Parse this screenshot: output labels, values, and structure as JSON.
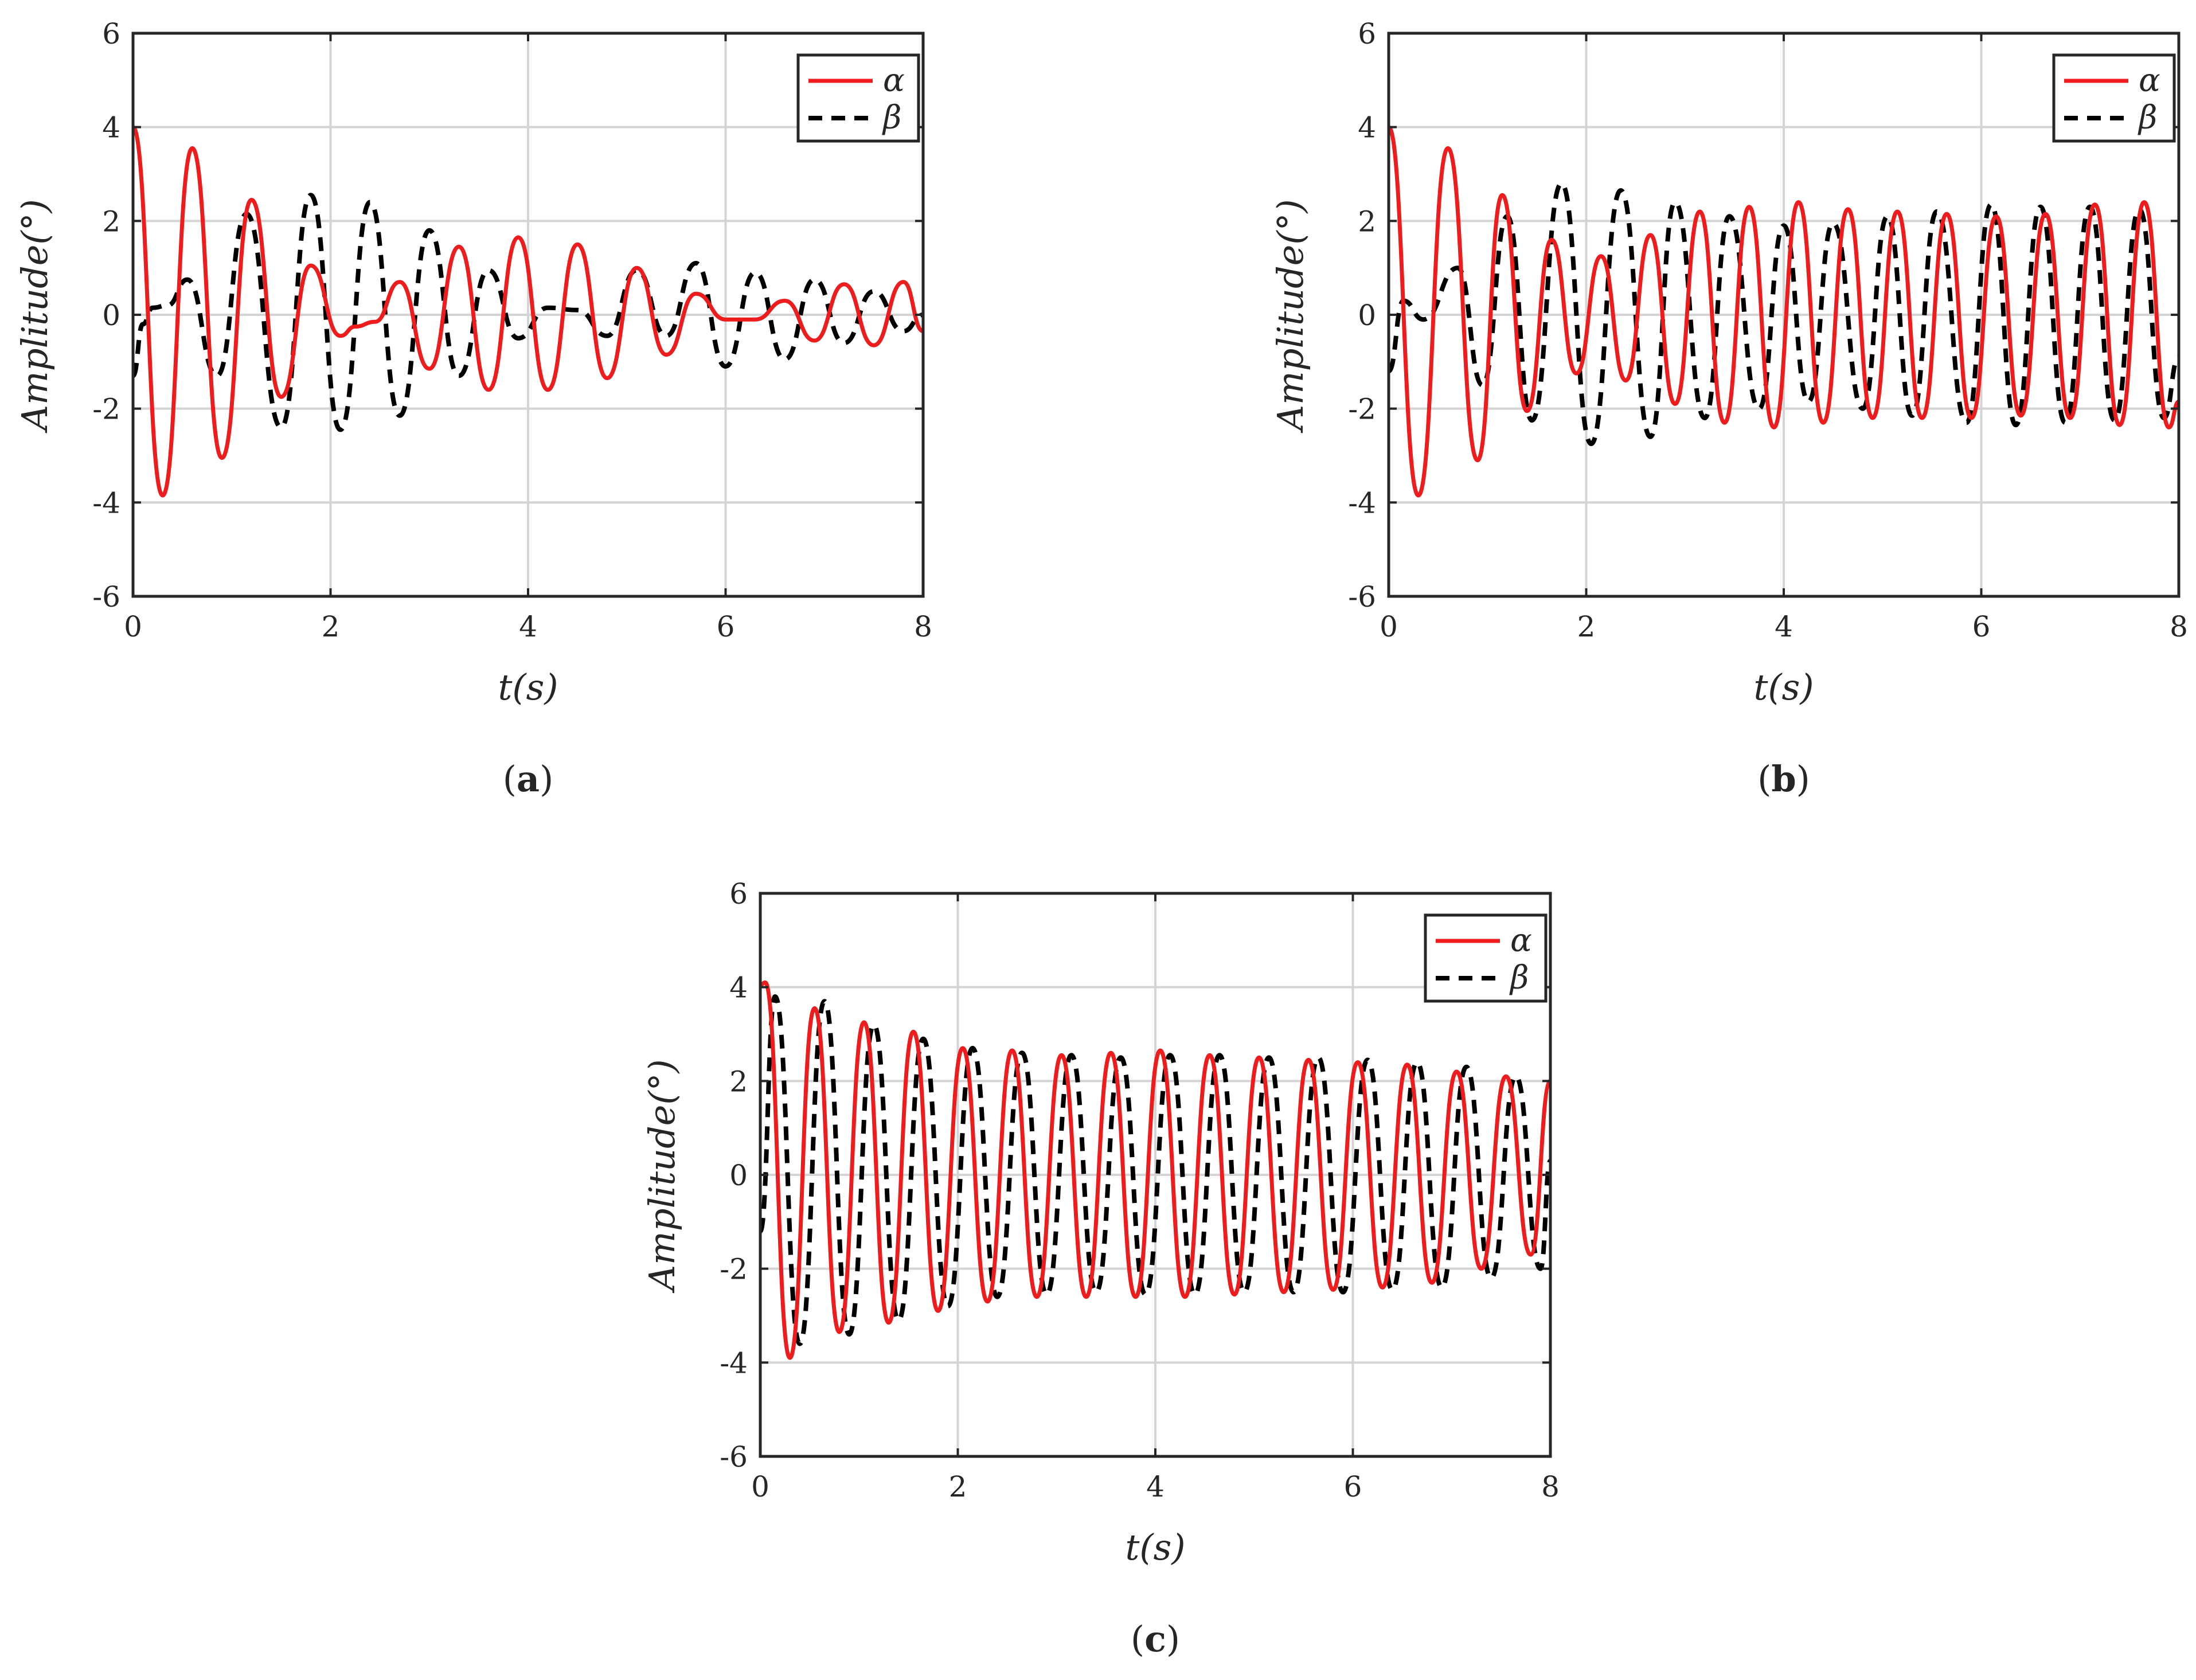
{
  "chart_data": [
    {
      "id": "a",
      "type": "line",
      "caption_open": "(",
      "caption_letter": "a",
      "caption_close": ")",
      "xlabel": "t(s)",
      "ylabel": "Amplitude(°)",
      "xlim": [
        0,
        8
      ],
      "ylim": [
        -6,
        6
      ],
      "xticks": [
        "0",
        "2",
        "4",
        "6",
        "8"
      ],
      "yticks": [
        "6",
        "4",
        "2",
        "0",
        "-2",
        "-4",
        "-6"
      ],
      "grid": true,
      "legend_position": "top-right",
      "series": [
        {
          "name": "α",
          "style": "solid",
          "color": "#ee1c1c",
          "x": [
            0,
            0.3,
            0.6,
            0.9,
            1.2,
            1.5,
            1.8,
            2.1,
            2.25,
            2.45,
            2.7,
            3.0,
            3.3,
            3.6,
            3.9,
            4.2,
            4.5,
            4.8,
            5.1,
            5.4,
            5.7,
            6.0,
            6.3,
            6.6,
            6.9,
            7.2,
            7.5,
            7.8,
            8.0
          ],
          "y": [
            4,
            -3.85,
            3.55,
            -3.05,
            2.45,
            -1.75,
            1.05,
            -0.45,
            -0.25,
            -0.15,
            0.7,
            -1.15,
            1.45,
            -1.6,
            1.65,
            -1.6,
            1.5,
            -1.35,
            1.0,
            -0.85,
            0.45,
            -0.1,
            -0.1,
            0.3,
            -0.55,
            0.65,
            -0.65,
            0.7,
            -0.35
          ]
        },
        {
          "name": "β",
          "style": "dashed",
          "color": "#000000",
          "x": [
            0,
            0.1,
            0.2,
            0.35,
            0.55,
            0.85,
            1.15,
            1.5,
            1.8,
            2.1,
            2.4,
            2.7,
            3.0,
            3.3,
            3.6,
            3.9,
            4.2,
            4.5,
            4.8,
            5.1,
            5.4,
            5.7,
            6.0,
            6.3,
            6.6,
            6.9,
            7.2,
            7.5,
            7.8,
            8.0
          ],
          "y": [
            -1.3,
            -0.2,
            0.15,
            0.2,
            0.75,
            -1.3,
            2.15,
            -2.4,
            2.55,
            -2.45,
            2.4,
            -2.15,
            1.8,
            -1.3,
            0.95,
            -0.5,
            0.15,
            0.1,
            -0.45,
            0.95,
            -0.45,
            1.1,
            -1.1,
            0.9,
            -0.95,
            0.75,
            -0.6,
            0.5,
            -0.35,
            0.0
          ]
        }
      ]
    },
    {
      "id": "b",
      "type": "line",
      "caption_open": "(",
      "caption_letter": "b",
      "caption_close": ")",
      "xlabel": "t(s)",
      "ylabel": "Amplitude(°)",
      "xlim": [
        0,
        8
      ],
      "ylim": [
        -6,
        6
      ],
      "xticks": [
        "0",
        "2",
        "4",
        "6",
        "8"
      ],
      "yticks": [
        "6",
        "4",
        "2",
        "0",
        "-2",
        "-4",
        "-6"
      ],
      "grid": true,
      "legend_position": "top-right",
      "series": [
        {
          "name": "α",
          "style": "solid",
          "color": "#ee1c1c",
          "x": [
            0,
            0.3,
            0.6,
            0.9,
            1.15,
            1.4,
            1.65,
            1.9,
            2.15,
            2.4,
            2.65,
            2.9,
            3.15,
            3.4,
            3.65,
            3.9,
            4.15,
            4.4,
            4.65,
            4.9,
            5.15,
            5.4,
            5.65,
            5.9,
            6.15,
            6.4,
            6.65,
            6.9,
            7.15,
            7.4,
            7.65,
            7.9,
            8.0
          ],
          "y": [
            4,
            -3.85,
            3.55,
            -3.1,
            2.55,
            -2.05,
            1.6,
            -1.25,
            1.25,
            -1.4,
            1.7,
            -1.9,
            2.2,
            -2.3,
            2.3,
            -2.4,
            2.4,
            -2.3,
            2.25,
            -2.2,
            2.2,
            -2.2,
            2.15,
            -2.2,
            2.1,
            -2.15,
            2.15,
            -2.2,
            2.35,
            -2.35,
            2.4,
            -2.4,
            -1.85
          ]
        },
        {
          "name": "β",
          "style": "dashed",
          "color": "#000000",
          "x": [
            0,
            0.15,
            0.35,
            0.7,
            0.95,
            1.2,
            1.45,
            1.75,
            2.05,
            2.35,
            2.65,
            2.9,
            3.2,
            3.45,
            3.75,
            4.0,
            4.25,
            4.5,
            4.8,
            5.05,
            5.3,
            5.55,
            5.85,
            6.1,
            6.35,
            6.6,
            6.85,
            7.1,
            7.35,
            7.6,
            7.85,
            8.0
          ],
          "y": [
            -1.2,
            0.3,
            -0.1,
            1.0,
            -1.5,
            2.1,
            -2.25,
            2.8,
            -2.75,
            2.65,
            -2.6,
            2.4,
            -2.2,
            2.1,
            -2.0,
            1.9,
            -1.85,
            1.95,
            -2.0,
            2.1,
            -2.15,
            2.2,
            -2.3,
            2.35,
            -2.35,
            2.3,
            -2.3,
            2.3,
            -2.25,
            2.25,
            -2.2,
            -0.9
          ]
        }
      ]
    },
    {
      "id": "c",
      "type": "line",
      "caption_open": "(",
      "caption_letter": "c",
      "caption_close": ")",
      "xlabel": "t(s)",
      "ylabel": "Amplitude(°)",
      "xlim": [
        0,
        8
      ],
      "ylim": [
        -6,
        6
      ],
      "xticks": [
        "0",
        "2",
        "4",
        "6",
        "8"
      ],
      "yticks": [
        "6",
        "4",
        "2",
        "0",
        "-2",
        "-4",
        "-6"
      ],
      "grid": true,
      "legend_position": "top-right",
      "series": [
        {
          "name": "α",
          "style": "solid",
          "color": "#ee1c1c",
          "x": [
            0,
            0.05,
            0.3,
            0.55,
            0.8,
            1.05,
            1.3,
            1.55,
            1.8,
            2.05,
            2.3,
            2.55,
            2.8,
            3.05,
            3.3,
            3.55,
            3.8,
            4.05,
            4.3,
            4.55,
            4.8,
            5.05,
            5.3,
            5.55,
            5.8,
            6.05,
            6.3,
            6.55,
            6.8,
            7.05,
            7.3,
            7.55,
            7.8,
            8.0
          ],
          "y": [
            4.05,
            4.1,
            -3.9,
            3.55,
            -3.35,
            3.25,
            -3.15,
            3.05,
            -2.9,
            2.7,
            -2.7,
            2.65,
            -2.6,
            2.55,
            -2.6,
            2.6,
            -2.6,
            2.65,
            -2.6,
            2.55,
            -2.55,
            2.5,
            -2.5,
            2.45,
            -2.45,
            2.4,
            -2.4,
            2.35,
            -2.3,
            2.2,
            -2.0,
            2.1,
            -1.7,
            2.0
          ]
        },
        {
          "name": "β",
          "style": "dashed",
          "color": "#000000",
          "x": [
            0,
            0.15,
            0.4,
            0.65,
            0.9,
            1.15,
            1.4,
            1.65,
            1.9,
            2.15,
            2.4,
            2.65,
            2.9,
            3.15,
            3.4,
            3.65,
            3.9,
            4.15,
            4.4,
            4.65,
            4.9,
            5.15,
            5.4,
            5.65,
            5.9,
            6.15,
            6.4,
            6.65,
            6.9,
            7.15,
            7.4,
            7.65,
            7.9,
            8.0
          ],
          "y": [
            -1.2,
            3.8,
            -3.6,
            3.7,
            -3.4,
            3.2,
            -3.1,
            2.9,
            -2.8,
            2.7,
            -2.6,
            2.6,
            -2.55,
            2.55,
            -2.5,
            2.5,
            -2.55,
            2.55,
            -2.55,
            2.55,
            -2.5,
            2.5,
            -2.5,
            2.5,
            -2.5,
            2.45,
            -2.45,
            2.4,
            -2.4,
            2.3,
            -2.2,
            2.1,
            -2.0,
            0.3
          ]
        }
      ]
    }
  ]
}
